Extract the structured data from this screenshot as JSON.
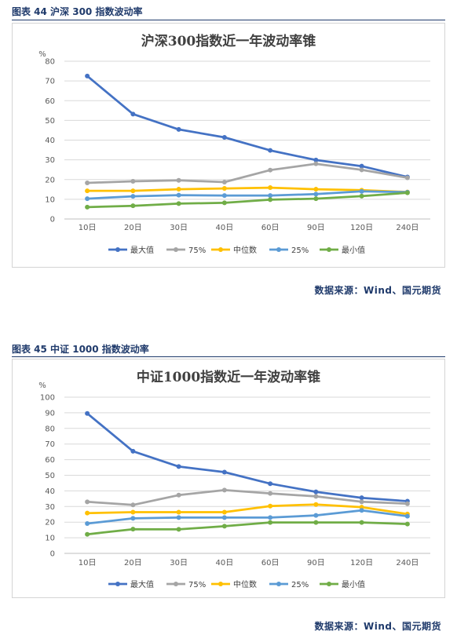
{
  "figures": [
    {
      "caption": "图表 44  沪深 300 指数波动率",
      "source": "数据来源：Wind、国元期货",
      "chart_data": {
        "type": "line",
        "title": "沪深300指数近一年波动率锥",
        "ylabel": "%",
        "ylim": [
          0,
          80
        ],
        "yticks": [
          0,
          10,
          20,
          30,
          40,
          50,
          60,
          70,
          80
        ],
        "categories": [
          "10日",
          "20日",
          "30日",
          "40日",
          "60日",
          "90日",
          "120日",
          "240日"
        ],
        "grid": true,
        "legend": "bottom",
        "series": [
          {
            "name": "最大值",
            "color": "#4472c4",
            "values": [
              72.5,
              53.2,
              45.4,
              41.4,
              34.8,
              29.9,
              26.8,
              21.3
            ]
          },
          {
            "name": "75%",
            "color": "#a5a5a5",
            "values": [
              18.3,
              19.1,
              19.6,
              18.7,
              24.8,
              28.0,
              24.9,
              20.9
            ]
          },
          {
            "name": "中位数",
            "color": "#ffc000",
            "values": [
              14.3,
              14.3,
              15.1,
              15.5,
              15.9,
              15.1,
              14.6,
              13.7
            ]
          },
          {
            "name": "25%",
            "color": "#5b9bd5",
            "values": [
              10.3,
              11.5,
              12.1,
              11.9,
              11.9,
              12.6,
              14.0,
              13.6
            ]
          },
          {
            "name": "最小值",
            "color": "#70ad47",
            "values": [
              6.0,
              6.7,
              7.8,
              8.2,
              9.8,
              10.3,
              11.6,
              13.3
            ]
          }
        ]
      }
    },
    {
      "caption": "图表 45  中证 1000 指数波动率",
      "source": "数据来源：Wind、国元期货",
      "chart_data": {
        "type": "line",
        "title": "中证1000指数近一年波动率锥",
        "ylabel": "%",
        "ylim": [
          0,
          100
        ],
        "yticks": [
          0,
          10,
          20,
          30,
          40,
          50,
          60,
          70,
          80,
          90,
          100
        ],
        "categories": [
          "10日",
          "20日",
          "30日",
          "40日",
          "60日",
          "90日",
          "120日",
          "240日"
        ],
        "grid": true,
        "legend": "bottom",
        "series": [
          {
            "name": "最大值",
            "color": "#4472c4",
            "values": [
              89.6,
              65.4,
              55.6,
              52.0,
              44.6,
              39.4,
              35.6,
              33.4
            ]
          },
          {
            "name": "75%",
            "color": "#a5a5a5",
            "values": [
              33.0,
              31.0,
              37.3,
              40.5,
              38.4,
              36.5,
              33.0,
              31.8
            ]
          },
          {
            "name": "中位数",
            "color": "#ffc000",
            "values": [
              25.8,
              26.4,
              26.4,
              26.4,
              30.3,
              31.3,
              29.6,
              25.2
            ]
          },
          {
            "name": "25%",
            "color": "#5b9bd5",
            "values": [
              19.1,
              22.4,
              22.9,
              22.9,
              22.9,
              24.3,
              27.5,
              23.8
            ]
          },
          {
            "name": "最小值",
            "color": "#70ad47",
            "values": [
              12.2,
              15.5,
              15.4,
              17.4,
              19.8,
              19.8,
              19.8,
              18.8
            ]
          }
        ]
      }
    }
  ]
}
